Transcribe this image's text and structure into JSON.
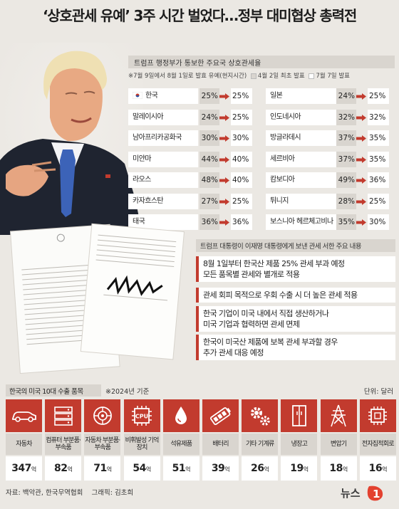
{
  "headline": "‘상호관세 유예’ 3주 시간 벌었다…정부 대미협상 총력전",
  "rates_panel": {
    "title": "트럼프 행정부가 통보한 주요국 상호관세율",
    "legend": {
      "note": "※7월 9일에서 8월 1일로 발효 유예(현지시간)",
      "first": "4월 2일 최초 발표",
      "second": "7월 7일 발표"
    },
    "left": [
      {
        "country": "한국",
        "first": "25%",
        "second": "25%"
      },
      {
        "country": "말레이시아",
        "first": "24%",
        "second": "25%"
      },
      {
        "country": "남아프리카공화국",
        "first": "30%",
        "second": "30%"
      },
      {
        "country": "미얀마",
        "first": "44%",
        "second": "40%"
      },
      {
        "country": "라오스",
        "first": "48%",
        "second": "40%"
      },
      {
        "country": "카자흐스탄",
        "first": "27%",
        "second": "25%"
      },
      {
        "country": "태국",
        "first": "36%",
        "second": "36%"
      }
    ],
    "right": [
      {
        "country": "일본",
        "first": "24%",
        "second": "25%"
      },
      {
        "country": "인도네시아",
        "first": "32%",
        "second": "32%"
      },
      {
        "country": "방글라데시",
        "first": "37%",
        "second": "35%"
      },
      {
        "country": "세르비아",
        "first": "37%",
        "second": "35%"
      },
      {
        "country": "캄보디아",
        "first": "49%",
        "second": "36%"
      },
      {
        "country": "튀니지",
        "first": "28%",
        "second": "25%"
      },
      {
        "country": "보스니아 헤르체고비나",
        "first": "35%",
        "second": "30%"
      }
    ]
  },
  "summary": {
    "title": "트럼프 대통령이 이재명 대통령에게 보낸 관세 서한 주요 내용",
    "items": [
      {
        "line1": "8월 1일부터 한국산 제품 25% 관세 부과 예정",
        "line2": "모든 품목별 관세와 별개로 적용"
      },
      {
        "line1": "관세 회피 목적으로 우회 수출 시 더 높은 관세 적용",
        "line2": ""
      },
      {
        "line1": "한국 기업이 미국 내에서 직접 생산하거나",
        "line2": "미국 기업과 협력하면 관세 면제"
      },
      {
        "line1": "한국이 미국산 제품에 보복 관세 부과할 경우",
        "line2": "추가 관세 대응 예정"
      }
    ]
  },
  "exports": {
    "title": "한국의 미국 10대 수출 품목",
    "note": "※2024년 기준",
    "unit": "단위: 달러",
    "value_suffix": "억",
    "items": [
      {
        "name": "자동차",
        "value": "347",
        "icon": "car-icon"
      },
      {
        "name": "컴퓨터 부분품·부속품",
        "value": "82",
        "icon": "computer-icon"
      },
      {
        "name": "자동차 부분품·부속품",
        "value": "71",
        "icon": "auto-part-icon"
      },
      {
        "name": "비휘발성 기억장치",
        "value": "54",
        "icon": "cpu-chip-icon"
      },
      {
        "name": "석유제품",
        "value": "51",
        "icon": "oil-drop-icon"
      },
      {
        "name": "배터리",
        "value": "39",
        "icon": "battery-icon"
      },
      {
        "name": "기타 기계류",
        "value": "26",
        "icon": "gears-icon"
      },
      {
        "name": "냉장고",
        "value": "19",
        "icon": "fridge-icon"
      },
      {
        "name": "변압기",
        "value": "18",
        "icon": "transformer-icon"
      },
      {
        "name": "전자집적회로",
        "value": "16",
        "icon": "ic-chip-icon"
      }
    ]
  },
  "footer": {
    "source": "자료: 백악관, 한국무역협회",
    "graphic": "그래픽: 김초희",
    "logo": "뉴스1"
  },
  "colors": {
    "accent": "#c23b2e",
    "first_rate": "#d9d5cf",
    "second_rate": "#ffffff"
  }
}
